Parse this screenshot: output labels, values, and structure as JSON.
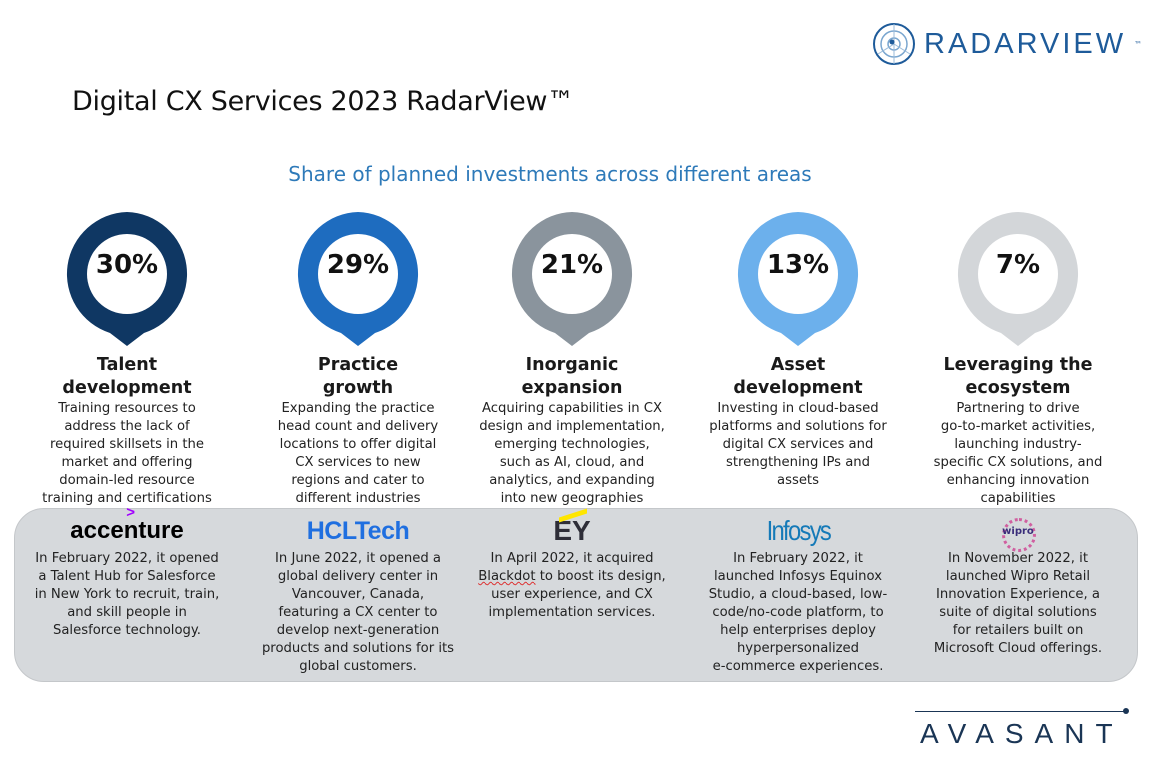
{
  "header": {
    "title": "Digital CX Services 2023 RadarView™",
    "subtitle": "Share of planned investments across different areas",
    "radarview_logo": "RADARVIEW",
    "radarview_tm": "™"
  },
  "areas": [
    {
      "percent": "30%",
      "value": 30,
      "color": "#0f3763",
      "title": "Talent\ndevelopment",
      "description": "Training resources to\naddress the lack of\nrequired skillsets in the\nmarket and offering\ndomain-led resource\ntraining and certifications"
    },
    {
      "percent": "29%",
      "value": 29,
      "color": "#1e6cbf",
      "title": "Practice\ngrowth",
      "description": "Expanding the practice\nhead count and delivery\nlocations to offer digital\nCX services to new\nregions and cater to\ndifferent industries"
    },
    {
      "percent": "21%",
      "value": 21,
      "color": "#8a949d",
      "title": "Inorganic\nexpansion",
      "description": "Acquiring capabilities in CX\ndesign and implementation,\nemerging technologies,\nsuch as AI, cloud, and\nanalytics, and expanding\ninto new geographies"
    },
    {
      "percent": "13%",
      "value": 13,
      "color": "#6cb0ec",
      "title": "Asset\ndevelopment",
      "description": "Investing in cloud-based\nplatforms and solutions for\ndigital CX services and\nstrengthening IPs and\nassets"
    },
    {
      "percent": "7%",
      "value": 7,
      "color": "#d3d6d9",
      "title": "Leveraging the\necosystem",
      "description": "Partnering to drive\ngo-to-market activities,\nlaunching industry-\nspecific CX solutions, and\nenhancing innovation\ncapabilities"
    }
  ],
  "vendors": [
    {
      "logo": "accenture",
      "accent": ">",
      "text": "In February 2022, it opened\na Talent Hub for Salesforce\nin New York to recruit, train,\nand skill people in\nSalesforce technology."
    },
    {
      "logo": "HCLTech",
      "text": "In June 2022, it opened a\nglobal delivery center in\nVancouver, Canada,\nfeaturing a CX center to\ndevelop next-generation\nproducts and solutions for its\nglobal customers."
    },
    {
      "logo": "EY",
      "text_underlined": "Blackdot",
      "text_pre": "In April 2022, it acquired\n",
      "text_post": " to boost its design,\nuser experience, and CX\nimplementation services."
    },
    {
      "logo": "Infosys",
      "text": "In February 2022, it\nlaunched Infosys Equinox\nStudio, a cloud-based, low-\ncode/no-code platform, to\nhelp enterprises deploy\nhyperpersonalized\ne-commerce experiences."
    },
    {
      "logo": "wipro",
      "text": "In November 2022, it\nlaunched Wipro Retail\nInnovation Experience, a\nsuite of digital solutions\nfor retailers built on\nMicrosoft Cloud offerings."
    }
  ],
  "footer": {
    "brand": "AVASANT"
  }
}
